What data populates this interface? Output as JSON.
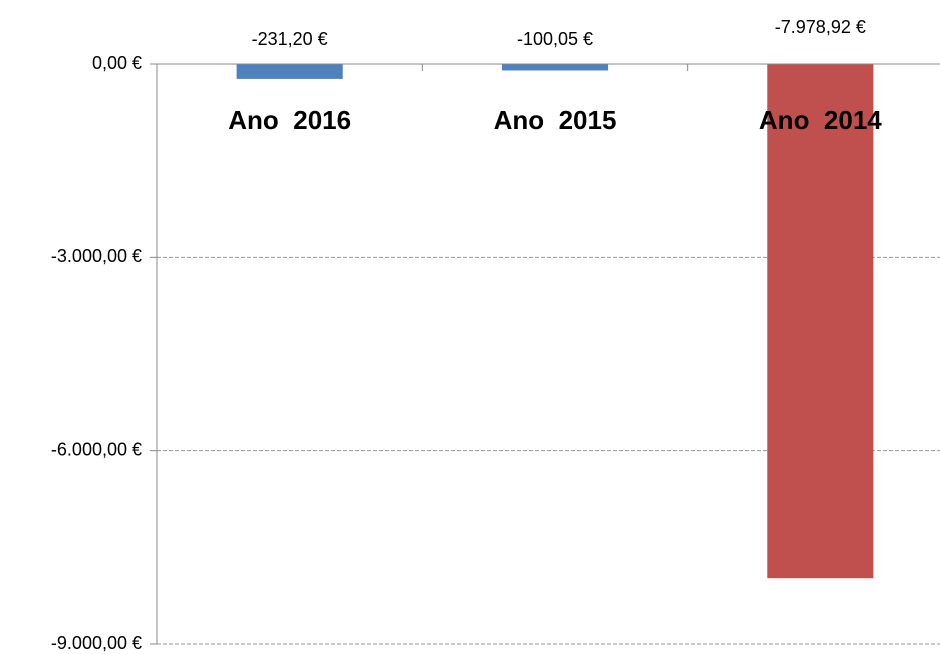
{
  "chart_data": {
    "type": "bar",
    "categories": [
      "Ano  2016",
      "Ano  2015",
      "Ano  2014"
    ],
    "values": [
      -231.2,
      -100.05,
      -7978.92
    ],
    "value_labels": [
      "-231,20 €",
      "-100,05 €",
      "-7.978,92 €"
    ],
    "colors": [
      "#4f81bd",
      "#4f81bd",
      "#c0504d"
    ],
    "ylim": [
      -9000,
      0
    ],
    "yticks": [
      {
        "value": 0,
        "label": "0,00 €"
      },
      {
        "value": -3000,
        "label": "-3.000,00 €"
      },
      {
        "value": -6000,
        "label": "-6.000,00 €"
      },
      {
        "value": -9000,
        "label": "-9.000,00 €"
      }
    ],
    "grid": true
  }
}
